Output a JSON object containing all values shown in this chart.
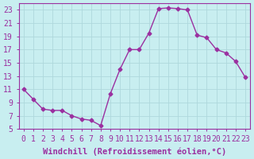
{
  "x": [
    0,
    1,
    2,
    3,
    4,
    5,
    6,
    7,
    8,
    9,
    10,
    11,
    12,
    13,
    14,
    15,
    16,
    17,
    18,
    19,
    20,
    21,
    22,
    23
  ],
  "y": [
    11,
    9.5,
    8,
    7.8,
    7.8,
    7,
    6.5,
    6.3,
    5.5,
    10.3,
    14,
    17,
    17,
    19.5,
    23.2,
    23.3,
    23.2,
    23,
    19.2,
    18.8,
    17,
    16.5,
    15.2,
    12.8
  ],
  "line_color": "#9b30a0",
  "marker": "D",
  "marker_size": 2.5,
  "bg_color": "#c8eef0",
  "grid_color": "#aed8dc",
  "xlabel": "Windchill (Refroidissement éolien,°C)",
  "xlabel_fontsize": 7.5,
  "xtick_labels": [
    "0",
    "1",
    "2",
    "3",
    "4",
    "5",
    "6",
    "7",
    "8",
    "9",
    "10",
    "11",
    "12",
    "13",
    "14",
    "15",
    "16",
    "17",
    "18",
    "19",
    "20",
    "21",
    "22",
    "23"
  ],
  "ylim": [
    5,
    24
  ],
  "xlim": [
    -0.5,
    23.5
  ],
  "ytick_values": [
    5,
    7,
    9,
    11,
    13,
    15,
    17,
    19,
    21,
    23
  ],
  "tick_color": "#9b30a0",
  "tick_fontsize": 7,
  "spine_color": "#9b30a0"
}
